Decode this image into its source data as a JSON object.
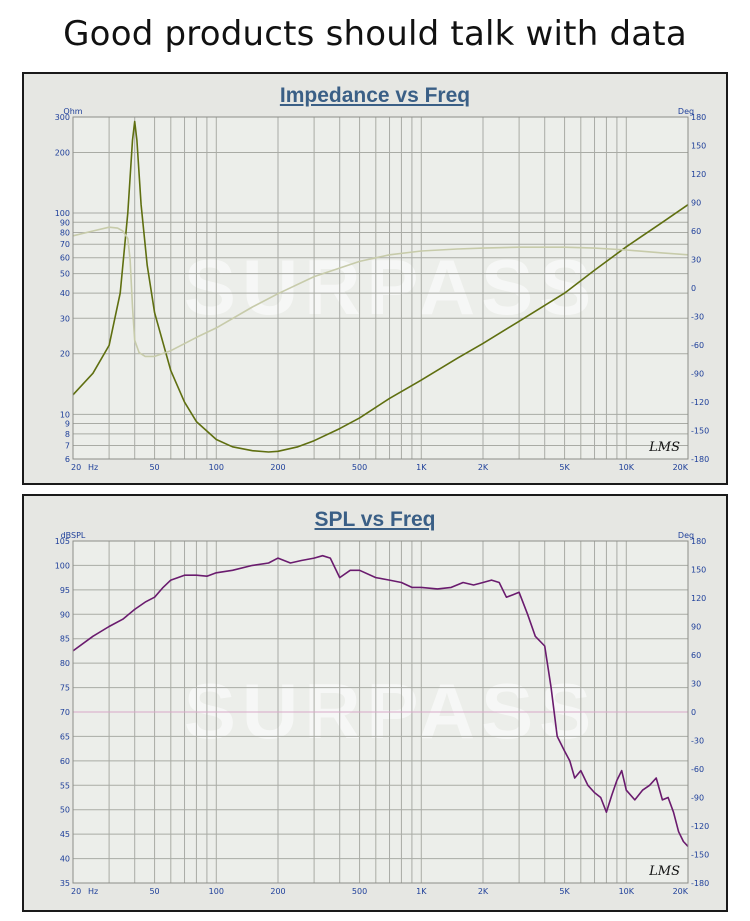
{
  "headline": "Good products should talk with data",
  "watermark": "SURPASS",
  "chart_data": [
    {
      "type": "line",
      "title": "Impedance vs Freq",
      "xlabel": "Hz",
      "ylabel": "Ohm",
      "y2label": "Deg",
      "xscale": "log",
      "yscale": "log",
      "xlim": [
        20,
        20000
      ],
      "ylim": [
        6,
        300
      ],
      "y2lim": [
        -180,
        180
      ],
      "xticks": [
        20,
        50,
        100,
        200,
        500,
        1000,
        2000,
        5000,
        10000,
        20000
      ],
      "xtick_labels": [
        "20",
        "50",
        "100",
        "200",
        "500",
        "1K",
        "2K",
        "5K",
        "10K",
        "20K"
      ],
      "yticks": [
        6,
        7,
        8,
        9,
        10,
        20,
        30,
        40,
        50,
        60,
        70,
        80,
        90,
        100,
        200,
        300
      ],
      "ytick_labels": [
        "6",
        "7",
        "8",
        "9",
        "10",
        "20",
        "30",
        "40",
        "50",
        "60",
        "70",
        "80",
        "90",
        "100",
        "200",
        "300"
      ],
      "y2ticks": [
        180,
        150,
        120,
        90,
        60,
        30,
        0,
        -30,
        -60,
        -90,
        -120,
        -150,
        -180
      ],
      "y2tick_labels": [
        "180",
        "150",
        "120",
        "90",
        "60",
        "30",
        "0",
        "-30",
        "-60",
        "-90",
        "-120",
        "-150",
        "-180"
      ],
      "grid": true,
      "corner_mark": "LMS",
      "series": [
        {
          "color": "#5f6f10",
          "axis": "left",
          "x": [
            20,
            25,
            30,
            34,
            37,
            39,
            40,
            41,
            43,
            46,
            50,
            60,
            70,
            80,
            100,
            120,
            150,
            180,
            200,
            250,
            300,
            400,
            500,
            700,
            1000,
            1500,
            2000,
            3000,
            5000,
            7000,
            10000,
            15000,
            20000
          ],
          "y": [
            12.5,
            16,
            22,
            40,
            100,
            230,
            285,
            230,
            110,
            55,
            32,
            16.5,
            11.5,
            9.2,
            7.5,
            6.9,
            6.6,
            6.5,
            6.55,
            6.9,
            7.4,
            8.5,
            9.6,
            12,
            14.8,
            19,
            22.5,
            29,
            40,
            52,
            68,
            90,
            110
          ]
        },
        {
          "color": "#c7cbaa",
          "axis": "right",
          "x": [
            20,
            25,
            30,
            33,
            35,
            37,
            38,
            39,
            40,
            42,
            45,
            50,
            60,
            80,
            100,
            150,
            200,
            300,
            500,
            700,
            1000,
            1500,
            2000,
            3000,
            5000,
            7000,
            10000,
            15000,
            20000
          ],
          "y": [
            55,
            60,
            64,
            63,
            60,
            52,
            30,
            -20,
            -55,
            -68,
            -72,
            -72,
            -66,
            -52,
            -42,
            -20,
            -6,
            12,
            28,
            35,
            39,
            41,
            42,
            43,
            43,
            42,
            40,
            37,
            35
          ]
        }
      ]
    },
    {
      "type": "line",
      "title": "SPL vs Freq",
      "xlabel": "Hz",
      "ylabel": "dBSPL",
      "y2label": "Deg",
      "xscale": "log",
      "xlim": [
        20,
        20000
      ],
      "ylim": [
        35,
        105
      ],
      "y2lim": [
        -180,
        180
      ],
      "xticks": [
        20,
        50,
        100,
        200,
        500,
        1000,
        2000,
        5000,
        10000,
        20000
      ],
      "xtick_labels": [
        "20",
        "50",
        "100",
        "200",
        "500",
        "1K",
        "2K",
        "5K",
        "10K",
        "20K"
      ],
      "yticks": [
        35,
        40,
        45,
        50,
        55,
        60,
        65,
        70,
        75,
        80,
        85,
        90,
        95,
        100,
        105
      ],
      "ytick_labels": [
        "35",
        "40",
        "45",
        "50",
        "55",
        "60",
        "65",
        "70",
        "75",
        "80",
        "85",
        "90",
        "95",
        "100",
        "105"
      ],
      "y2ticks": [
        180,
        150,
        120,
        90,
        60,
        30,
        0,
        -30,
        -60,
        -90,
        -120,
        -150,
        -180
      ],
      "y2tick_labels": [
        "180",
        "150",
        "120",
        "90",
        "60",
        "30",
        "0",
        "-30",
        "-60",
        "-90",
        "-120",
        "-150",
        "-180"
      ],
      "grid": true,
      "corner_mark": "LMS",
      "series": [
        {
          "color": "#6a1b6e",
          "axis": "left",
          "x": [
            20,
            25,
            30,
            35,
            40,
            45,
            50,
            55,
            60,
            65,
            70,
            80,
            90,
            100,
            120,
            150,
            180,
            200,
            230,
            260,
            300,
            330,
            360,
            400,
            450,
            500,
            600,
            700,
            800,
            900,
            1000,
            1200,
            1400,
            1600,
            1800,
            2000,
            2200,
            2400,
            2600,
            2800,
            3000,
            3300,
            3600,
            4000,
            4300,
            4600,
            5000,
            5300,
            5600,
            6000,
            6500,
            7000,
            7500,
            8000,
            8500,
            9000,
            9500,
            10000,
            11000,
            12000,
            13000,
            14000,
            15000,
            16000,
            17000,
            18000,
            19000,
            20000
          ],
          "y": [
            82.5,
            85.5,
            87.5,
            89,
            91,
            92.5,
            93.5,
            95.5,
            97,
            97.5,
            98,
            98,
            97.8,
            98.5,
            99,
            100,
            100.5,
            101.5,
            100.5,
            101,
            101.5,
            102,
            101.5,
            97.5,
            99,
            99,
            97.5,
            97,
            96.5,
            95.5,
            95.5,
            95.2,
            95.5,
            96.5,
            96,
            96.5,
            97,
            96.5,
            93.5,
            94,
            94.5,
            90,
            85.5,
            83.5,
            75,
            65,
            62,
            60,
            56.5,
            58,
            55,
            53.5,
            52.5,
            49.5,
            53,
            56,
            58,
            54,
            52,
            54,
            55,
            56.5,
            52,
            52.5,
            49.5,
            45.5,
            43.5,
            42.5
          ]
        }
      ]
    }
  ]
}
